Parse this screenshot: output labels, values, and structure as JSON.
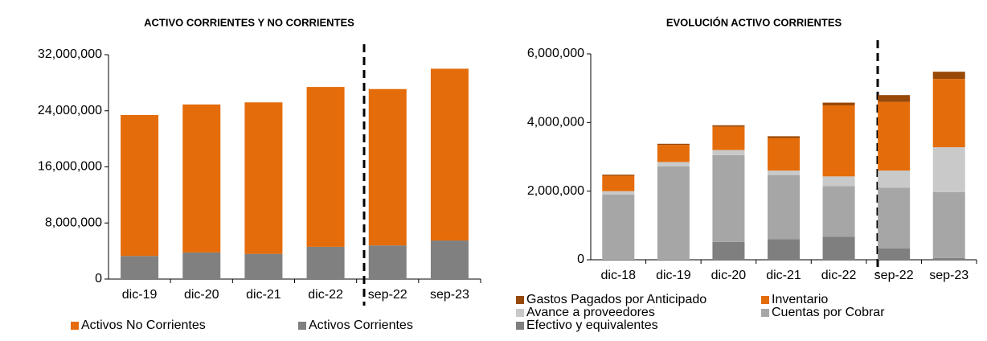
{
  "chart_data": [
    {
      "type": "stacked-bar",
      "title": "ACTIVO CORRIENTES Y NO CORRIENTES",
      "categories": [
        "dic-19",
        "dic-20",
        "dic-21",
        "dic-22",
        "sep-22",
        "sep-23"
      ],
      "series": [
        {
          "name": "Activos Corrientes",
          "color": "#808080",
          "values": [
            3300000,
            3800000,
            3600000,
            4600000,
            4800000,
            5500000
          ]
        },
        {
          "name": "Activos No Corrientes",
          "color": "#e46c0a",
          "values": [
            20100000,
            21100000,
            21600000,
            22800000,
            22300000,
            24500000
          ]
        }
      ],
      "legend_order": [
        "Activos No Corrientes",
        "Activos Corrientes"
      ],
      "ylim": [
        0,
        32000000
      ],
      "yticks": [
        0,
        {
          "value": 8000000,
          "label": "8,000,000"
        },
        {
          "value": 16000000,
          "label": "16,000,000"
        },
        {
          "value": 24000000,
          "label": "24,000,000"
        },
        {
          "value": 32000000,
          "label": "32,000,000"
        }
      ],
      "grid": false
    },
    {
      "type": "stacked-bar",
      "title": "EVOLUCIÓN ACTIVO CORRIENTES",
      "categories": [
        "dic-18",
        "dic-19",
        "dic-20",
        "dic-21",
        "dic-22",
        "sep-22",
        "sep-23"
      ],
      "series": [
        {
          "name": "Efectivo y equivalentes",
          "color": "#7f7f7f",
          "values": [
            0,
            0,
            520000,
            600000,
            670000,
            330000,
            50000
          ]
        },
        {
          "name": "Cuentas por Cobrar",
          "color": "#a6a6a6",
          "values": [
            1900000,
            2720000,
            2530000,
            1870000,
            1480000,
            1770000,
            1920000
          ]
        },
        {
          "name": "Avance a proveedores",
          "color": "#c9c9c9",
          "values": [
            100000,
            130000,
            150000,
            130000,
            280000,
            500000,
            1310000
          ]
        },
        {
          "name": "Inventario",
          "color": "#e46c0a",
          "values": [
            450000,
            500000,
            680000,
            950000,
            2070000,
            2000000,
            1990000
          ]
        },
        {
          "name": "Gastos Pagados por Anticipado",
          "color": "#984807",
          "values": [
            30000,
            30000,
            40000,
            50000,
            80000,
            200000,
            210000
          ]
        }
      ],
      "legend_order": [
        "Gastos Pagados por Anticipado",
        "Inventario",
        "Avance a proveedores",
        "Cuentas por Cobrar",
        "Efectivo y equivalentes"
      ],
      "ylim": [
        0,
        6000000
      ],
      "yticks": [
        0,
        {
          "value": 2000000,
          "label": "2,000,000"
        },
        {
          "value": 4000000,
          "label": "4,000,000"
        },
        {
          "value": 6000000,
          "label": "6,000,000"
        }
      ],
      "grid": false
    }
  ]
}
